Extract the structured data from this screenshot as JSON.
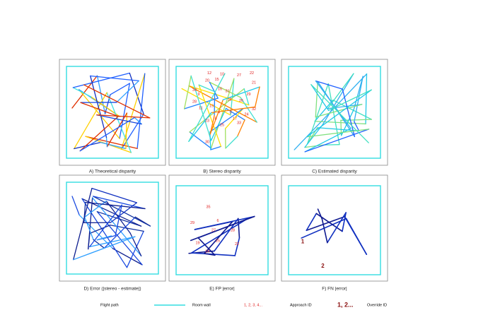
{
  "panels": [
    {
      "caption": "A) Theoretical disparity"
    },
    {
      "caption": "B) Stereo disparity",
      "labels": [
        "12",
        "10",
        "15",
        "20",
        "27",
        "22",
        "21",
        "16",
        "9",
        "34",
        "31",
        "18",
        "26",
        "29",
        "28",
        "19",
        "4",
        "3",
        "17",
        "24",
        "32",
        "25",
        "23",
        "11",
        "33",
        "8",
        "30"
      ]
    },
    {
      "caption": "C) Estimated disparity"
    },
    {
      "caption": "D) Error (|stereo - estimate|)"
    },
    {
      "caption": "E) FP |error|",
      "labels": [
        "35",
        "29",
        "6",
        "27",
        "28",
        "19",
        "25",
        "14",
        "22"
      ]
    },
    {
      "caption": "F) FN |error|",
      "labels": [
        "1",
        "2"
      ]
    }
  ],
  "legend": [
    {
      "label": "Flight path"
    },
    {
      "label": "Room wall"
    },
    {
      "sample": "1, 2, 3, 4...",
      "label": "Approach ID"
    },
    {
      "sample": "1, 2...",
      "label": "Override ID"
    }
  ]
}
